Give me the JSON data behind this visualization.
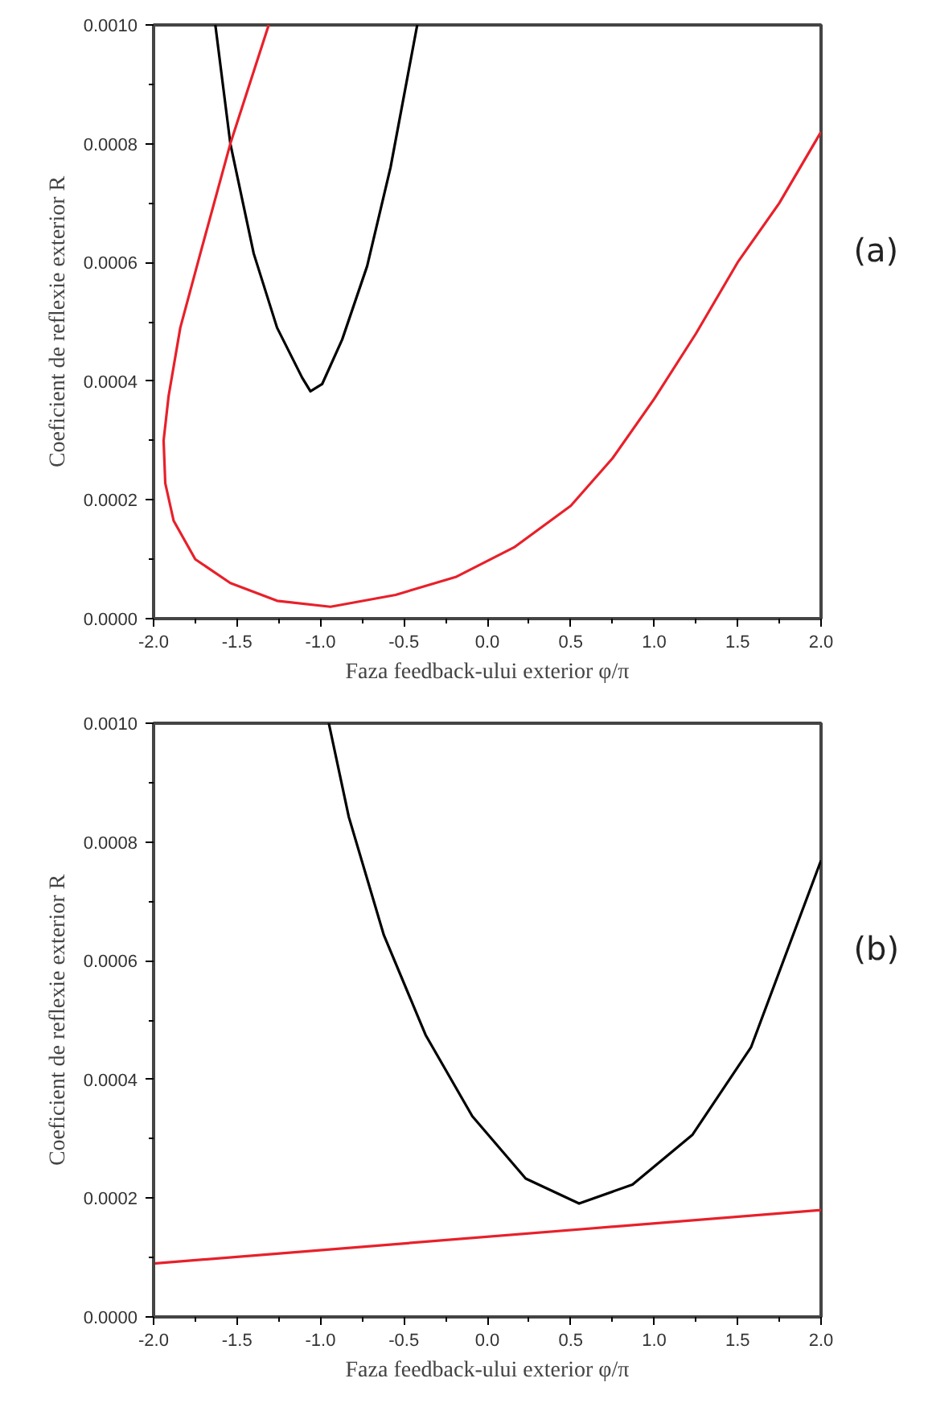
{
  "chart_data": [
    {
      "type": "line",
      "xlabel": "Faza feedback-ului exterior φ/π",
      "ylabel": "Coeficient de reflexie exterior R",
      "annotations": [
        "(a)"
      ],
      "xlim": [
        -2.0,
        2.0
      ],
      "ylim": [
        0.0,
        0.001
      ],
      "xticks": [
        {
          "value": -2.0,
          "label": "-2.0"
        },
        {
          "value": -1.5,
          "label": "-1.5"
        },
        {
          "value": -1.0,
          "label": "-1.0"
        },
        {
          "value": -0.5,
          "label": "-0.5"
        },
        {
          "value": 0.0,
          "label": "0.0"
        },
        {
          "value": 0.5,
          "label": "0.5"
        },
        {
          "value": 1.0,
          "label": "1.0"
        },
        {
          "value": 1.5,
          "label": "1.5"
        },
        {
          "value": 2.0,
          "label": "2.0"
        }
      ],
      "yticks": [
        {
          "value": 0.0,
          "label": "0.0000"
        },
        {
          "value": 0.0002,
          "label": "0.0002"
        },
        {
          "value": 0.0004,
          "label": "0.0004"
        },
        {
          "value": 0.0006,
          "label": "0.0006"
        },
        {
          "value": 0.0008,
          "label": "0.0008"
        },
        {
          "value": 0.001,
          "label": "0.0010"
        }
      ],
      "grid": false,
      "marker": "none",
      "line_style": "solid",
      "series": [
        {
          "color": "#000000",
          "x": [
            -1.63,
            -1.54,
            -1.4,
            -1.26,
            -1.11,
            -1.06,
            -0.99,
            -0.87,
            -0.72,
            -0.58,
            -0.42
          ],
          "values": [
            0.001,
            0.0008,
            0.000615,
            0.00049,
            0.000406,
            0.000383,
            0.000395,
            0.00047,
            0.000594,
            0.00076,
            0.001
          ]
        },
        {
          "color": "#e8202a",
          "x": [
            -1.31,
            -1.54,
            -1.72,
            -1.84,
            -1.91,
            -1.94,
            -1.93,
            -1.88,
            -1.75,
            -1.54,
            -1.26,
            -0.94,
            -0.55,
            -0.19,
            0.16,
            0.5,
            0.75,
            1.0,
            1.25,
            1.5,
            1.75,
            2.0
          ],
          "values": [
            0.001,
            0.0008,
            0.000615,
            0.00049,
            0.000375,
            0.0003,
            0.000228,
            0.000165,
            0.0001,
            6e-05,
            3e-05,
            2e-05,
            4e-05,
            7e-05,
            0.00012,
            0.00019,
            0.00027,
            0.00037,
            0.00048,
            0.0006,
            0.0007,
            0.00082
          ]
        }
      ]
    },
    {
      "type": "line",
      "xlabel": "Faza feedback-ului exterior φ/π",
      "ylabel": "Coeficient de reflexie exterior R",
      "annotations": [
        "(b)"
      ],
      "xlim": [
        -2.0,
        2.0
      ],
      "ylim": [
        0.0,
        0.001
      ],
      "xticks": [
        {
          "value": -2.0,
          "label": "-2.0"
        },
        {
          "value": -1.5,
          "label": "-1.5"
        },
        {
          "value": -1.0,
          "label": "-1.0"
        },
        {
          "value": -0.5,
          "label": "-0.5"
        },
        {
          "value": 0.0,
          "label": "0.0"
        },
        {
          "value": 0.5,
          "label": "0.5"
        },
        {
          "value": 1.0,
          "label": "1.0"
        },
        {
          "value": 1.5,
          "label": "1.5"
        },
        {
          "value": 2.0,
          "label": "2.0"
        }
      ],
      "yticks": [
        {
          "value": 0.0,
          "label": "0.0000"
        },
        {
          "value": 0.0002,
          "label": "0.0002"
        },
        {
          "value": 0.0004,
          "label": "0.0004"
        },
        {
          "value": 0.0006,
          "label": "0.0006"
        },
        {
          "value": 0.0008,
          "label": "0.0008"
        },
        {
          "value": 0.001,
          "label": "0.0010"
        }
      ],
      "grid": false,
      "marker": "none",
      "line_style": "solid",
      "series": [
        {
          "color": "#000000",
          "x": [
            -0.95,
            -0.83,
            -0.62,
            -0.37,
            -0.09,
            0.23,
            0.55,
            0.87,
            1.23,
            1.58,
            2.0
          ],
          "values": [
            0.001,
            0.000842,
            0.000643,
            0.000475,
            0.000338,
            0.000233,
            0.000191,
            0.000223,
            0.000307,
            0.000454,
            0.000769
          ]
        },
        {
          "color": "#e8202a",
          "x": [
            -2.0,
            2.0
          ],
          "values": [
            9e-05,
            0.00018
          ]
        }
      ]
    }
  ]
}
